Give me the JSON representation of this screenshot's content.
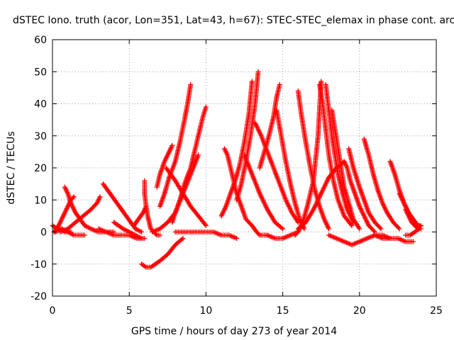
{
  "chart_data": {
    "type": "scatter",
    "title": "dSTEC Iono. truth (acor, Lon=351, Lat=43, h=67): STEC-STEC_elemax in phase cont. arc",
    "xlabel": "GPS time / hours of day 273 of year 2014",
    "ylabel": "dSTEC  / TECUs",
    "xlim": [
      0,
      25
    ],
    "ylim": [
      -20,
      60
    ],
    "x_ticks": [
      "0",
      "5",
      "10",
      "15",
      "20",
      "25"
    ],
    "y_ticks": [
      "-20",
      "-10",
      "0",
      "10",
      "20",
      "30",
      "40",
      "50",
      "60"
    ],
    "grid": true,
    "legend": "none",
    "marker": "plus",
    "color": "#ff0000",
    "series": [
      {
        "x": [
          0.0,
          0.3,
          0.6,
          0.8,
          1.0,
          1.2
        ],
        "y": [
          2,
          1,
          1,
          0,
          0,
          0
        ]
      },
      {
        "x": [
          0.2,
          0.6,
          1.0,
          1.4,
          1.8,
          2.1
        ],
        "y": [
          0,
          1,
          0,
          -1,
          -1,
          -1
        ]
      },
      {
        "x": [
          0.8,
          1.0,
          1.2,
          1.5,
          1.8,
          2.1,
          2.5,
          3.0,
          3.5,
          4.0
        ],
        "y": [
          14,
          12,
          9,
          6,
          4,
          2,
          1,
          0,
          0,
          0
        ]
      },
      {
        "x": [
          0.1,
          0.4,
          0.7,
          1.0,
          1.2,
          1.4
        ],
        "y": [
          0,
          2,
          5,
          8,
          10,
          11
        ]
      },
      {
        "x": [
          0.5,
          1.0,
          1.5,
          2.0,
          2.5,
          2.9,
          3.1
        ],
        "y": [
          0,
          1,
          3,
          5,
          7,
          9,
          11
        ]
      },
      {
        "x": [
          3.3,
          3.6,
          3.9,
          4.2,
          4.5,
          4.8,
          5.1,
          5.4,
          5.8
        ],
        "y": [
          15,
          13,
          11,
          9,
          7,
          5,
          3,
          1,
          0
        ]
      },
      {
        "x": [
          4.0,
          4.3,
          4.6,
          5.0,
          5.4,
          5.8
        ],
        "y": [
          3,
          2,
          1,
          0,
          -1,
          -2
        ]
      },
      {
        "x": [
          3.0,
          3.5,
          4.0,
          4.5,
          5.0,
          5.5,
          6.0
        ],
        "y": [
          1,
          0,
          -1,
          -1,
          -1,
          -2,
          -2
        ]
      },
      {
        "x": [
          5.3,
          5.6,
          5.9,
          6.1
        ],
        "y": [
          2,
          4,
          6,
          8
        ]
      },
      {
        "x": [
          5.8,
          6.1,
          6.4,
          6.7,
          7.0,
          7.5,
          8.0,
          8.5
        ],
        "y": [
          -10,
          -11,
          -11,
          -10,
          -9,
          -7,
          -4,
          -2
        ]
      },
      {
        "x": [
          6.0,
          6.0,
          6.1,
          6.2,
          6.3,
          6.4,
          6.6,
          6.8,
          7.0
        ],
        "y": [
          16,
          12,
          8,
          5,
          3,
          1,
          0,
          -1,
          -1
        ]
      },
      {
        "x": [
          6.5,
          7.0,
          7.5,
          8.0,
          8.5,
          9.0,
          9.5
        ],
        "y": [
          0,
          1,
          3,
          6,
          12,
          18,
          24
        ]
      },
      {
        "x": [
          7.0,
          7.3,
          7.6,
          8.0,
          8.3,
          8.6,
          8.8,
          9.0
        ],
        "y": [
          8,
          12,
          17,
          22,
          28,
          35,
          40,
          46
        ]
      },
      {
        "x": [
          7.8,
          8.0,
          8.3,
          8.6,
          9.0,
          9.3,
          9.6,
          9.8,
          10.0
        ],
        "y": [
          3,
          6,
          10,
          15,
          20,
          26,
          32,
          36,
          39
        ]
      },
      {
        "x": [
          6.8,
          7.0,
          7.3,
          7.5,
          7.8
        ],
        "y": [
          14,
          18,
          22,
          24,
          27
        ]
      },
      {
        "x": [
          7.4,
          7.7,
          8.0,
          8.5,
          9.0,
          9.5,
          10.0
        ],
        "y": [
          20,
          18,
          16,
          12,
          8,
          5,
          2
        ]
      },
      {
        "x": [
          8.0,
          8.5,
          9.0,
          9.5,
          10.0,
          10.5,
          11.0,
          11.5,
          12.0
        ],
        "y": [
          0,
          0,
          0,
          0,
          0,
          0,
          -1,
          -1,
          -2
        ]
      },
      {
        "x": [
          11.2,
          11.4,
          11.6,
          11.8,
          12.0,
          12.3,
          12.6,
          13.0,
          13.3,
          13.5,
          13.8,
          14.0
        ],
        "y": [
          26,
          24,
          20,
          16,
          12,
          8,
          4,
          2,
          0,
          -1,
          -1,
          -1
        ]
      },
      {
        "x": [
          11.0,
          11.3,
          11.6,
          11.9,
          12.2,
          12.5,
          12.8,
          13.0
        ],
        "y": [
          5,
          8,
          12,
          16,
          21,
          28,
          37,
          47
        ]
      },
      {
        "x": [
          12.0,
          12.3,
          12.6,
          12.9,
          13.2,
          13.4
        ],
        "y": [
          10,
          15,
          22,
          30,
          40,
          50
        ]
      },
      {
        "x": [
          12.5,
          13.0,
          13.5,
          14.0,
          14.5,
          15.0
        ],
        "y": [
          24,
          18,
          12,
          7,
          3,
          1
        ]
      },
      {
        "x": [
          13.2,
          13.6,
          14.0,
          14.4,
          14.8,
          15.2,
          15.6,
          16.0
        ],
        "y": [
          34,
          30,
          25,
          20,
          15,
          10,
          6,
          3
        ]
      },
      {
        "x": [
          13.5,
          13.8,
          14.1,
          14.4,
          14.6,
          14.8
        ],
        "y": [
          20,
          25,
          30,
          36,
          42,
          46
        ]
      },
      {
        "x": [
          14.6,
          14.9,
          15.2,
          15.5,
          15.8,
          16.1,
          16.4
        ],
        "y": [
          38,
          30,
          22,
          15,
          9,
          4,
          1
        ]
      },
      {
        "x": [
          14.0,
          14.5,
          15.0,
          15.5,
          16.0
        ],
        "y": [
          -1,
          -2,
          -2,
          -1,
          0
        ]
      },
      {
        "x": [
          16.0,
          16.2,
          16.5,
          16.8,
          17.1,
          17.4,
          17.7,
          18.0
        ],
        "y": [
          44,
          37,
          28,
          20,
          13,
          8,
          4,
          1
        ]
      },
      {
        "x": [
          15.8,
          16.0,
          16.3,
          16.6,
          17.0,
          17.3,
          17.5
        ],
        "y": [
          -1,
          0,
          3,
          8,
          16,
          30,
          47
        ]
      },
      {
        "x": [
          17.4,
          17.6,
          17.8,
          18.0,
          18.3,
          18.6,
          19.0,
          19.5
        ],
        "y": [
          46,
          40,
          32,
          24,
          16,
          10,
          5,
          2
        ]
      },
      {
        "x": [
          17.8,
          18.0,
          18.2,
          18.4,
          18.6,
          18.9,
          19.2,
          19.6
        ],
        "y": [
          46,
          38,
          30,
          24,
          18,
          12,
          7,
          3
        ]
      },
      {
        "x": [
          18.2,
          18.4,
          18.6,
          18.8,
          19.0,
          19.3,
          19.6,
          20.0
        ],
        "y": [
          38,
          32,
          26,
          20,
          14,
          9,
          4,
          1
        ]
      },
      {
        "x": [
          16.0,
          16.5,
          17.0,
          17.5,
          18.0,
          18.5,
          19.0
        ],
        "y": [
          1,
          3,
          7,
          12,
          17,
          20,
          22
        ]
      },
      {
        "x": [
          19.0,
          19.2,
          19.4,
          19.7,
          20.0,
          20.3,
          20.6,
          21.0
        ],
        "y": [
          22,
          20,
          16,
          12,
          8,
          5,
          2,
          0
        ]
      },
      {
        "x": [
          19.3,
          19.6,
          20.0,
          20.3,
          20.6,
          21.0,
          21.4
        ],
        "y": [
          26,
          20,
          14,
          10,
          6,
          3,
          1
        ]
      },
      {
        "x": [
          20.3,
          20.6,
          20.9,
          21.2,
          21.5,
          21.8,
          22.2,
          22.6
        ],
        "y": [
          29,
          24,
          18,
          13,
          9,
          6,
          3,
          1
        ]
      },
      {
        "x": [
          18.0,
          18.5,
          19.0,
          19.5,
          20.0,
          20.5,
          21.0,
          21.5,
          22.0
        ],
        "y": [
          -1,
          -2,
          -3,
          -4,
          -3,
          -2,
          -1,
          -1,
          -2
        ]
      },
      {
        "x": [
          21.0,
          21.5,
          22.0,
          22.5,
          23.0,
          23.5
        ],
        "y": [
          -1,
          -2,
          -2,
          -2,
          -3,
          -3
        ]
      },
      {
        "x": [
          22.0,
          22.3,
          22.6,
          22.9,
          23.2,
          23.5,
          23.8
        ],
        "y": [
          22,
          18,
          13,
          9,
          6,
          3,
          1
        ]
      },
      {
        "x": [
          22.6,
          22.9,
          23.2,
          23.5,
          23.8,
          24.0
        ],
        "y": [
          12,
          9,
          6,
          4,
          2,
          2
        ]
      },
      {
        "x": [
          23.0,
          23.2,
          23.4,
          23.6,
          23.8,
          24.0
        ],
        "y": [
          7,
          5,
          3,
          2,
          1,
          2
        ]
      },
      {
        "x": [
          23.0,
          23.3,
          23.6,
          23.9,
          24.0
        ],
        "y": [
          -1,
          -1,
          0,
          1,
          1
        ]
      }
    ]
  }
}
